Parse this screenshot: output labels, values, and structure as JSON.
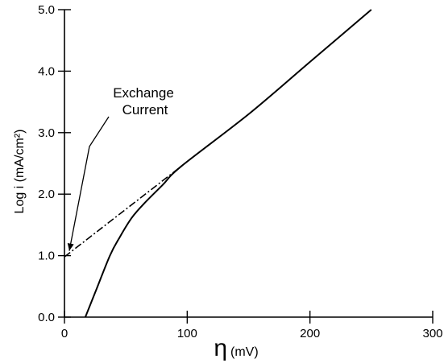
{
  "chart_data": {
    "type": "line",
    "xlabel_symbol": "η",
    "xlabel_unit": "(mV)",
    "ylabel": "Log i (mA/cm²)",
    "xlim": [
      0,
      300
    ],
    "ylim": [
      0,
      5
    ],
    "x_ticks": [
      0,
      100,
      200,
      300
    ],
    "x_tick_labels": [
      "0",
      "100",
      "200",
      "300"
    ],
    "y_ticks": [
      0,
      1,
      2,
      3,
      4,
      5
    ],
    "y_tick_labels": [
      "0.0",
      "1.0",
      "2.0",
      "3.0",
      "4.0",
      "5.0"
    ],
    "grid": false,
    "series": [
      {
        "style": "solid",
        "points": [
          [
            17,
            0.0
          ],
          [
            25,
            0.4
          ],
          [
            37,
            1.0
          ],
          [
            45,
            1.3
          ],
          [
            55,
            1.62
          ],
          [
            65,
            1.85
          ],
          [
            80,
            2.15
          ],
          [
            95,
            2.45
          ],
          [
            150,
            3.3
          ],
          [
            200,
            4.15
          ],
          [
            250,
            5.0
          ]
        ]
      },
      {
        "style": "dash-dot",
        "points": [
          [
            0,
            0.98
          ],
          [
            95,
            2.45
          ]
        ]
      }
    ],
    "annotation": {
      "lines": [
        "Exchange",
        "Current"
      ],
      "target": [
        0,
        1.0
      ]
    }
  }
}
